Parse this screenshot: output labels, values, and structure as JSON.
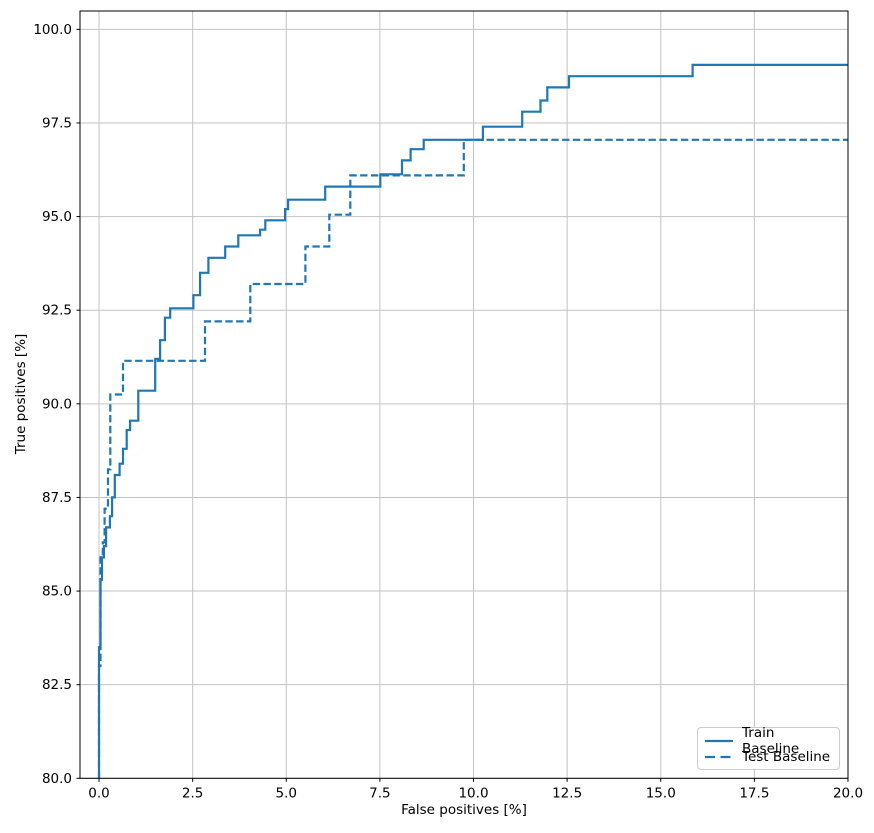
{
  "chart_data": {
    "type": "line",
    "subtype": "roc-step-curves",
    "title": "",
    "xlabel": "False positives [%]",
    "ylabel": "True positives [%]",
    "xlim": [
      -0.508,
      20.0
    ],
    "ylim": [
      80.0,
      100.49
    ],
    "x_ticks": [
      0.0,
      2.5,
      5.0,
      7.5,
      10.0,
      12.5,
      15.0,
      17.5,
      20.0
    ],
    "x_tick_labels": [
      "0.0",
      "2.5",
      "5.0",
      "7.5",
      "10.0",
      "12.5",
      "15.0",
      "17.5",
      "20.0"
    ],
    "y_ticks": [
      80.0,
      82.5,
      85.0,
      87.5,
      90.0,
      92.5,
      95.0,
      97.5,
      100.0
    ],
    "y_tick_labels": [
      "80.0",
      "82.5",
      "85.0",
      "87.5",
      "90.0",
      "92.5",
      "95.0",
      "97.5",
      "100.0"
    ],
    "grid": true,
    "line_color": "#1f77b4",
    "legend": {
      "position": "lower right",
      "entries": [
        {
          "label": "Train Baseline",
          "style": "solid"
        },
        {
          "label": "Test Baseline",
          "style": "dashed"
        }
      ]
    },
    "series": [
      {
        "name": "Train Baseline",
        "style": "solid",
        "points": [
          [
            0.0,
            80.0
          ],
          [
            0.0,
            83.5
          ],
          [
            0.04,
            83.5
          ],
          [
            0.04,
            85.3
          ],
          [
            0.08,
            85.3
          ],
          [
            0.08,
            85.9
          ],
          [
            0.13,
            85.9
          ],
          [
            0.13,
            86.2
          ],
          [
            0.19,
            86.2
          ],
          [
            0.19,
            86.7
          ],
          [
            0.29,
            86.7
          ],
          [
            0.29,
            87.0
          ],
          [
            0.35,
            87.0
          ],
          [
            0.35,
            87.5
          ],
          [
            0.42,
            87.5
          ],
          [
            0.42,
            88.1
          ],
          [
            0.55,
            88.1
          ],
          [
            0.55,
            88.4
          ],
          [
            0.64,
            88.4
          ],
          [
            0.64,
            88.8
          ],
          [
            0.74,
            88.8
          ],
          [
            0.74,
            89.3
          ],
          [
            0.83,
            89.3
          ],
          [
            0.83,
            89.55
          ],
          [
            1.05,
            89.55
          ],
          [
            1.05,
            90.35
          ],
          [
            1.5,
            90.35
          ],
          [
            1.5,
            91.2
          ],
          [
            1.63,
            91.2
          ],
          [
            1.63,
            91.7
          ],
          [
            1.76,
            91.7
          ],
          [
            1.76,
            92.3
          ],
          [
            1.9,
            92.3
          ],
          [
            1.9,
            92.55
          ],
          [
            2.52,
            92.55
          ],
          [
            2.52,
            92.9
          ],
          [
            2.7,
            92.9
          ],
          [
            2.7,
            93.5
          ],
          [
            2.92,
            93.5
          ],
          [
            2.92,
            93.9
          ],
          [
            3.37,
            93.9
          ],
          [
            3.37,
            94.2
          ],
          [
            3.72,
            94.2
          ],
          [
            3.72,
            94.5
          ],
          [
            4.3,
            94.5
          ],
          [
            4.3,
            94.65
          ],
          [
            4.44,
            94.65
          ],
          [
            4.44,
            94.9
          ],
          [
            4.97,
            94.9
          ],
          [
            4.97,
            95.2
          ],
          [
            5.05,
            95.2
          ],
          [
            5.05,
            95.45
          ],
          [
            6.04,
            95.45
          ],
          [
            6.04,
            95.8
          ],
          [
            7.51,
            95.8
          ],
          [
            7.51,
            96.13
          ],
          [
            8.09,
            96.13
          ],
          [
            8.09,
            96.5
          ],
          [
            8.32,
            96.5
          ],
          [
            8.32,
            96.8
          ],
          [
            8.67,
            96.8
          ],
          [
            8.67,
            97.05
          ],
          [
            10.25,
            97.05
          ],
          [
            10.25,
            97.4
          ],
          [
            11.3,
            97.4
          ],
          [
            11.3,
            97.8
          ],
          [
            11.79,
            97.8
          ],
          [
            11.79,
            98.1
          ],
          [
            11.97,
            98.1
          ],
          [
            11.97,
            98.45
          ],
          [
            12.55,
            98.45
          ],
          [
            12.55,
            98.75
          ],
          [
            15.85,
            98.75
          ],
          [
            15.85,
            99.05
          ],
          [
            20.0,
            99.05
          ]
        ]
      },
      {
        "name": "Test Baseline",
        "style": "dashed",
        "points": [
          [
            0.0,
            80.0
          ],
          [
            0.0,
            83.0
          ],
          [
            0.04,
            83.0
          ],
          [
            0.04,
            85.9
          ],
          [
            0.1,
            85.9
          ],
          [
            0.1,
            86.3
          ],
          [
            0.15,
            86.3
          ],
          [
            0.15,
            87.2
          ],
          [
            0.24,
            87.2
          ],
          [
            0.24,
            88.25
          ],
          [
            0.3,
            88.25
          ],
          [
            0.3,
            90.25
          ],
          [
            0.64,
            90.25
          ],
          [
            0.64,
            91.15
          ],
          [
            2.83,
            91.15
          ],
          [
            2.83,
            92.2
          ],
          [
            4.04,
            92.2
          ],
          [
            4.04,
            93.2
          ],
          [
            5.51,
            93.2
          ],
          [
            5.51,
            94.2
          ],
          [
            6.15,
            94.2
          ],
          [
            6.15,
            95.05
          ],
          [
            6.71,
            95.05
          ],
          [
            6.71,
            96.1
          ],
          [
            9.74,
            96.1
          ],
          [
            9.74,
            97.05
          ],
          [
            20.0,
            97.05
          ]
        ]
      }
    ]
  }
}
